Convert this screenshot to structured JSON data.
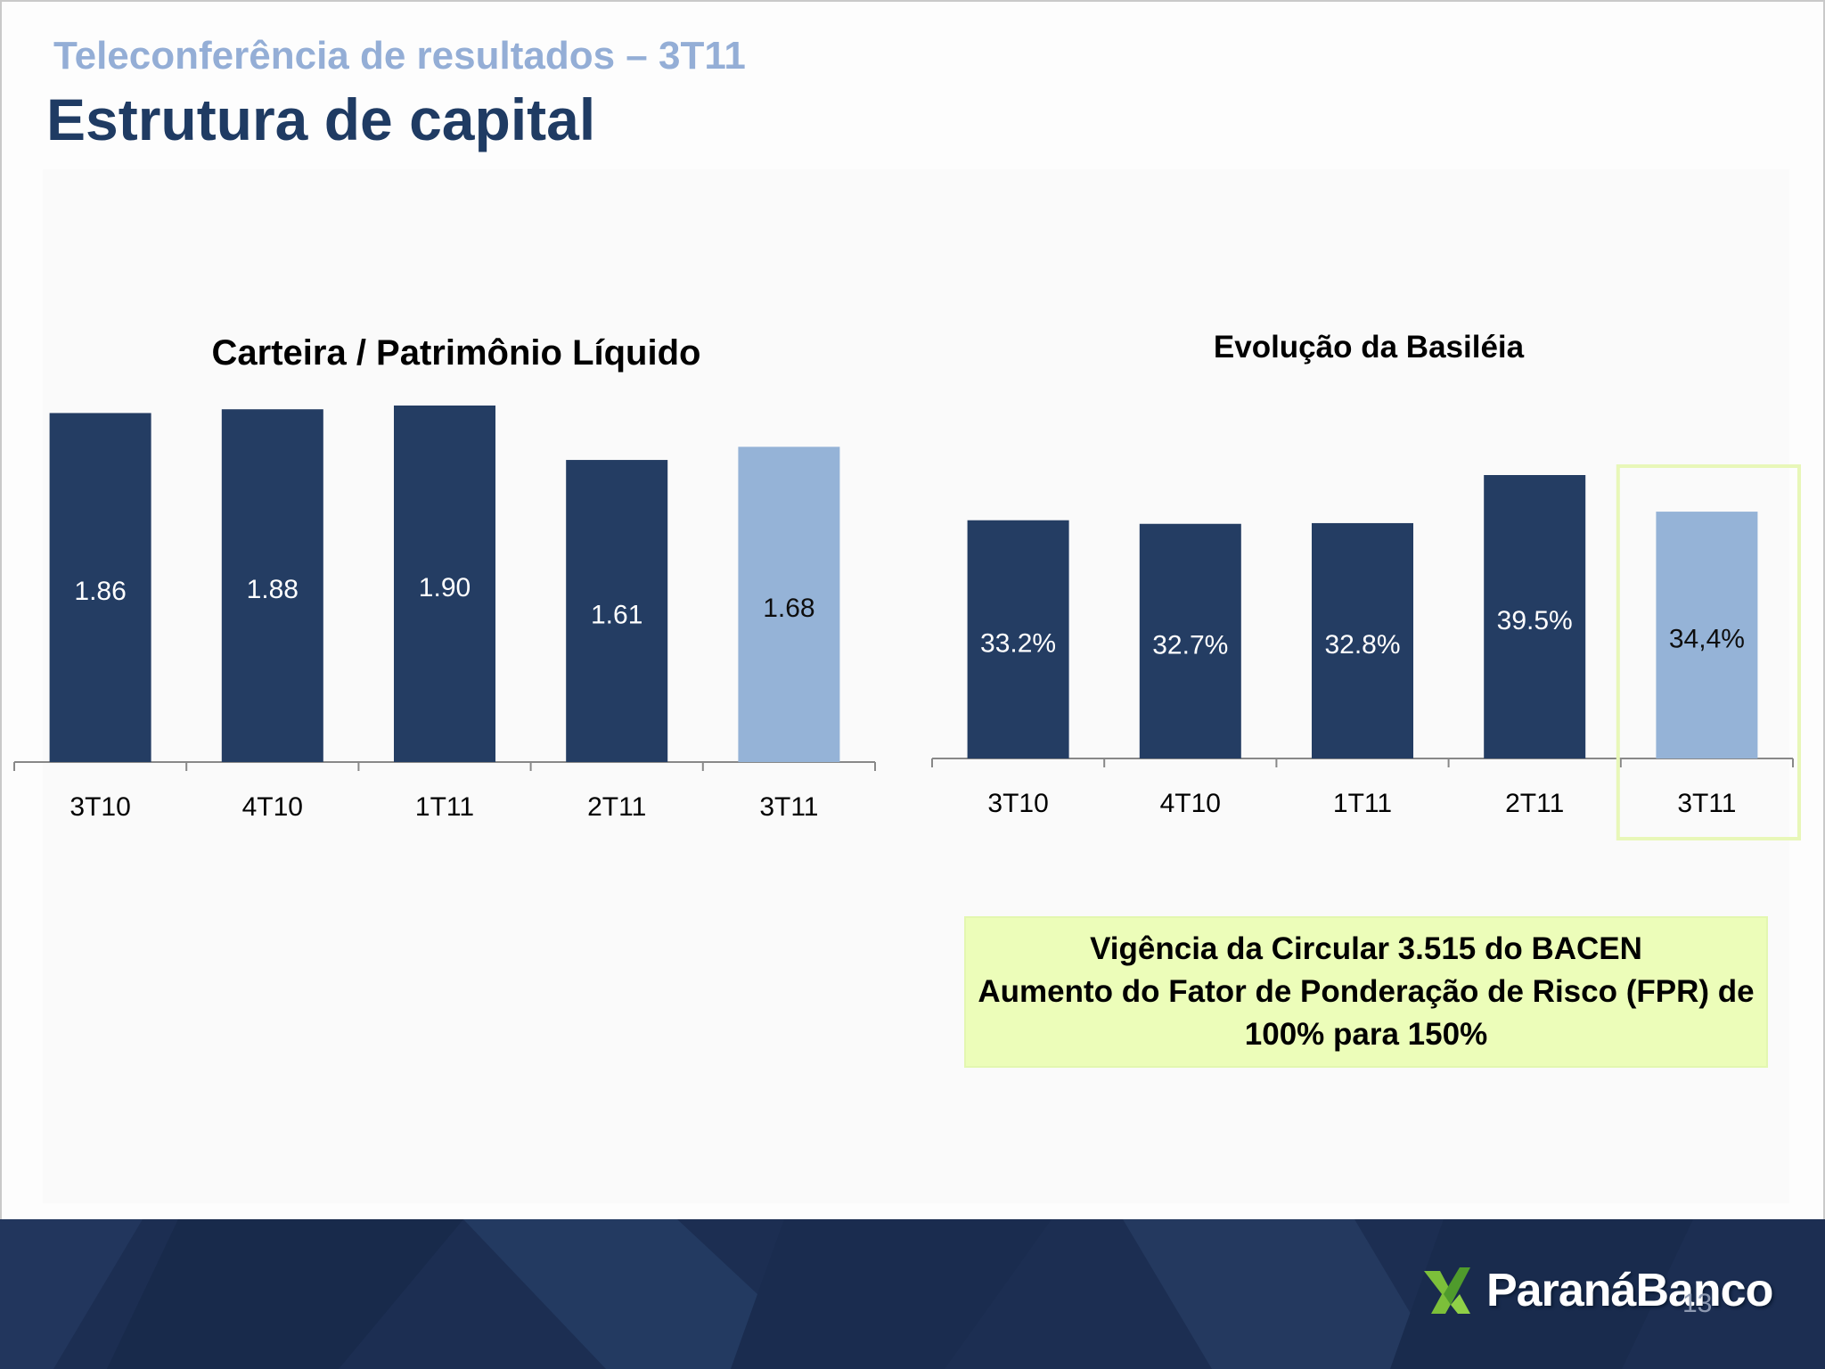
{
  "header": {
    "subtitle": "Teleconferência de resultados – 3T11",
    "title": "Estrutura de capital"
  },
  "colors": {
    "bar_dark": "#243d63",
    "bar_light": "#95b3d7",
    "highlight_border": "#e8f7b8",
    "note_background": "#ecfdb9",
    "footer": "#1c2e52"
  },
  "chart_data": [
    {
      "type": "bar",
      "title": "Carteira / Patrimônio Líquido",
      "categories": [
        "3T10",
        "4T10",
        "1T11",
        "2T11",
        "3T11"
      ],
      "values": [
        1.86,
        1.88,
        1.9,
        1.61,
        1.68
      ],
      "value_labels": [
        "1.86",
        "1.88",
        "1.90",
        "1.61",
        "1.68"
      ],
      "highlighted_category": "3T11",
      "ylim": [
        0,
        1.9
      ]
    },
    {
      "type": "bar",
      "title": "Evolução da Basiléia",
      "categories": [
        "3T10",
        "4T10",
        "1T11",
        "2T11",
        "3T11"
      ],
      "values": [
        33.2,
        32.7,
        32.8,
        39.5,
        34.4
      ],
      "value_labels": [
        "33.2%",
        "32.7%",
        "32.8%",
        "39.5%",
        "34,4%"
      ],
      "highlighted_category": "3T11",
      "ylim": [
        0,
        39.5
      ]
    }
  ],
  "note": {
    "lines": [
      "Vigência da Circular 3.515 do BACEN",
      "Aumento do Fator de Ponderação de Risco (FPR) de",
      "100% para 150%"
    ]
  },
  "footer": {
    "logo_text": "ParanáBanco",
    "logo_icon": "paranabanco-logo-icon",
    "page_number": "13"
  }
}
